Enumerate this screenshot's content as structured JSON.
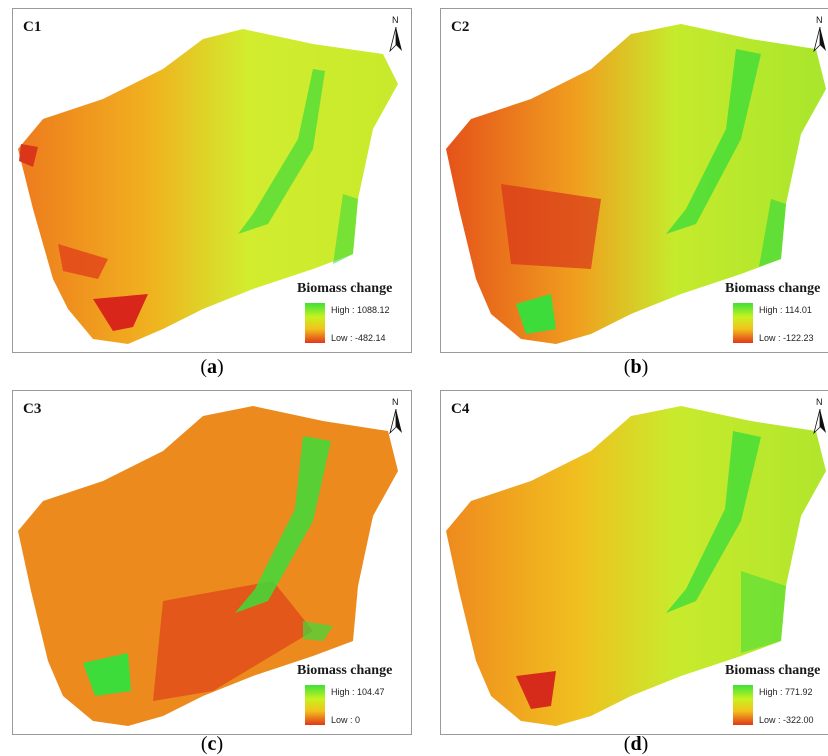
{
  "panels": [
    {
      "label": "C1",
      "legend_title": "Biomass change",
      "high": "High : 1088.12",
      "low": "Low : -482.14",
      "caption_letter": "a",
      "colors": {
        "base": "#d7ec2e",
        "west": "#f08a1e",
        "hot": "#d9261a",
        "green": "#3edc3a"
      }
    },
    {
      "label": "C2",
      "legend_title": "Biomass change",
      "high": "High : 114.01",
      "low": "Low : -122.23",
      "caption_letter": "b",
      "colors": {
        "base": "#bfe92a",
        "west": "#ef8a1f",
        "hot": "#dc3a1a",
        "green": "#3edc3a"
      }
    },
    {
      "label": "C3",
      "legend_title": "Biomass change",
      "high": "High : 104.47",
      "low": "Low : 0",
      "caption_letter": "c",
      "colors": {
        "base": "#ec8a1e",
        "west": "#e56a1a",
        "hot": "#d6361a",
        "green": "#3edc3a"
      }
    },
    {
      "label": "C4",
      "legend_title": "Biomass change",
      "high": "High : 771.92",
      "low": "Low : -322.00",
      "caption_letter": "d",
      "colors": {
        "base": "#c9ea2b",
        "west": "#f0941f",
        "hot": "#d62a1a",
        "green": "#3edc3a"
      }
    }
  ],
  "north_letter": "N",
  "legend_gradient": [
    "#3ee03a",
    "#c8f21f",
    "#f2c21c",
    "#e2361a"
  ]
}
